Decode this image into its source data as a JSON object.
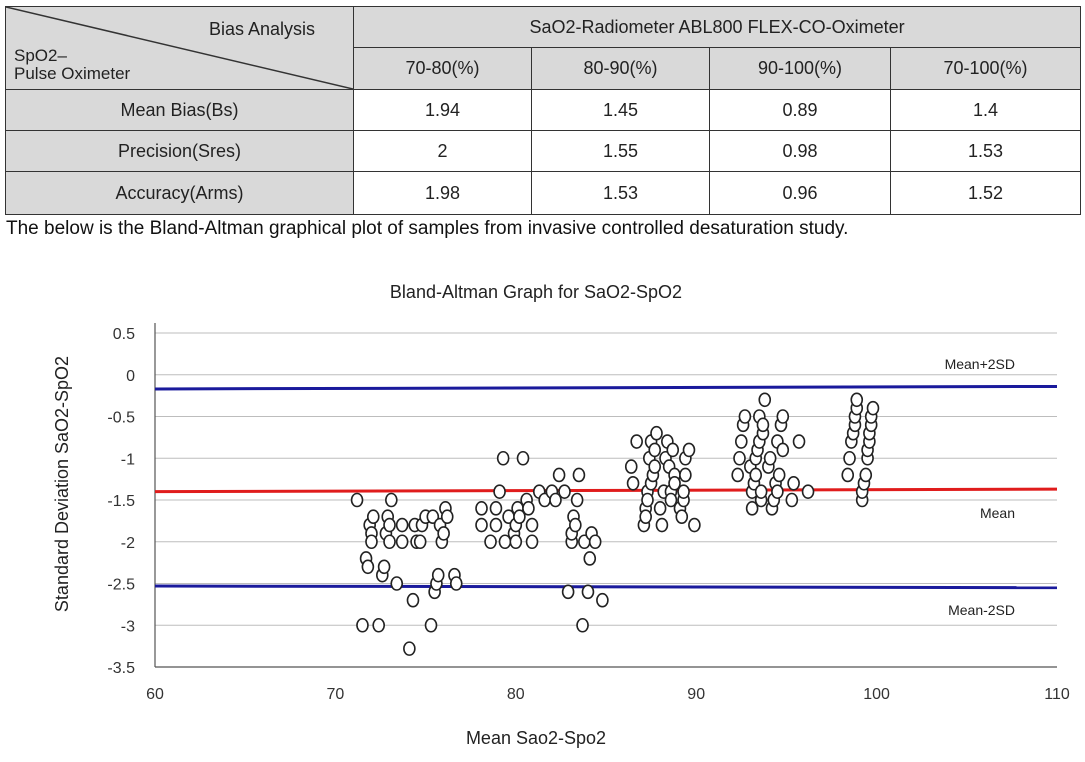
{
  "table": {
    "header_bias": "Bias Analysis",
    "header_spo2_line1": "SpO2–",
    "header_spo2_line2": "Pulse Oximeter",
    "header_device": "SaO2-Radiometer ABL800 FLEX-CO-Oximeter",
    "ranges": [
      "70-80(%)",
      "80-90(%)",
      "90-100(%)",
      "70-100(%)"
    ],
    "rows": [
      {
        "label": "Mean Bias(Bs)",
        "values": [
          "1.94",
          "1.45",
          "0.89",
          "1.4"
        ]
      },
      {
        "label": "Precision(Sres)",
        "values": [
          "2",
          "1.55",
          "0.98",
          "1.53"
        ]
      },
      {
        "label": "Accuracy(Arms)",
        "values": [
          "1.98",
          "1.53",
          "0.96",
          "1.52"
        ]
      }
    ]
  },
  "caption": "The below is the Bland-Altman graphical plot of samples from invasive controlled desaturation study.",
  "colors": {
    "upper_lower": "#1a1a9c",
    "mean": "#e01c1c",
    "grid": "#bdbdbd",
    "marker": "#222222"
  },
  "chart_data": {
    "type": "scatter",
    "title": "Bland-Altman Graph for SaO2-SpO2",
    "xlabel": "Mean Sao2-Spo2",
    "ylabel": "Standard Deviation SaO2-SpO2",
    "xlim": [
      60,
      110
    ],
    "ylim": [
      -3.5,
      0.5
    ],
    "xticks": [
      "60",
      "70",
      "80",
      "90",
      "100",
      "110"
    ],
    "yticks": [
      "0.5",
      "0",
      "-0.5",
      "-1",
      "-1.5",
      "-2",
      "-2.5",
      "-3",
      "-3.5"
    ],
    "grid": true,
    "lines": [
      {
        "name": "Mean+2SD",
        "y": [
          -0.17,
          -0.14
        ]
      },
      {
        "name": "Mean",
        "y": [
          -1.4,
          -1.37
        ]
      },
      {
        "name": "Mean-2SD",
        "y": [
          -2.53,
          -2.55
        ]
      }
    ],
    "line_labels": [
      "Mean+2SD",
      "Mean",
      "Mean-2SD"
    ],
    "points": [
      [
        71.2,
        -1.5
      ],
      [
        71.5,
        -3.0
      ],
      [
        71.7,
        -2.2
      ],
      [
        71.8,
        -2.3
      ],
      [
        71.9,
        -1.8
      ],
      [
        72.0,
        -1.9
      ],
      [
        72.0,
        -2.0
      ],
      [
        72.1,
        -1.7
      ],
      [
        72.4,
        -3.0
      ],
      [
        72.6,
        -2.4
      ],
      [
        72.7,
        -2.3
      ],
      [
        72.8,
        -1.9
      ],
      [
        72.9,
        -1.7
      ],
      [
        73.0,
        -2.0
      ],
      [
        73.0,
        -1.8
      ],
      [
        73.1,
        -1.5
      ],
      [
        73.4,
        -2.5
      ],
      [
        73.7,
        -1.8
      ],
      [
        73.7,
        -2.0
      ],
      [
        74.1,
        -3.28
      ],
      [
        74.3,
        -2.7
      ],
      [
        74.4,
        -1.8
      ],
      [
        74.5,
        -2.0
      ],
      [
        74.7,
        -2.0
      ],
      [
        74.8,
        -1.8
      ],
      [
        75.0,
        -1.7
      ],
      [
        75.3,
        -3.0
      ],
      [
        75.4,
        -1.7
      ],
      [
        75.5,
        -2.6
      ],
      [
        75.6,
        -2.5
      ],
      [
        75.7,
        -2.4
      ],
      [
        75.8,
        -1.8
      ],
      [
        75.9,
        -2.0
      ],
      [
        76.0,
        -1.9
      ],
      [
        76.1,
        -1.6
      ],
      [
        76.2,
        -1.7
      ],
      [
        76.6,
        -2.4
      ],
      [
        76.7,
        -2.5
      ],
      [
        78.1,
        -1.6
      ],
      [
        78.1,
        -1.8
      ],
      [
        78.6,
        -2.0
      ],
      [
        78.9,
        -1.6
      ],
      [
        78.9,
        -1.8
      ],
      [
        79.1,
        -1.4
      ],
      [
        79.3,
        -1.0
      ],
      [
        79.4,
        -2.0
      ],
      [
        79.6,
        -1.7
      ],
      [
        79.9,
        -1.9
      ],
      [
        80.0,
        -2.0
      ],
      [
        80.0,
        -1.8
      ],
      [
        80.1,
        -1.6
      ],
      [
        80.2,
        -1.7
      ],
      [
        80.4,
        -1.0
      ],
      [
        80.6,
        -1.5
      ],
      [
        80.7,
        -1.6
      ],
      [
        80.9,
        -1.8
      ],
      [
        80.9,
        -2.0
      ],
      [
        81.3,
        -1.4
      ],
      [
        81.6,
        -1.5
      ],
      [
        82.0,
        -1.4
      ],
      [
        82.2,
        -1.5
      ],
      [
        82.4,
        -1.2
      ],
      [
        82.7,
        -1.4
      ],
      [
        82.9,
        -2.6
      ],
      [
        83.1,
        -2.0
      ],
      [
        83.1,
        -1.9
      ],
      [
        83.2,
        -1.7
      ],
      [
        83.3,
        -1.8
      ],
      [
        83.4,
        -1.5
      ],
      [
        83.5,
        -1.2
      ],
      [
        83.7,
        -3.0
      ],
      [
        83.8,
        -2.0
      ],
      [
        84.0,
        -2.6
      ],
      [
        84.1,
        -2.2
      ],
      [
        84.2,
        -1.9
      ],
      [
        84.4,
        -2.0
      ],
      [
        84.8,
        -2.7
      ],
      [
        86.4,
        -1.1
      ],
      [
        86.5,
        -1.3
      ],
      [
        86.7,
        -0.8
      ],
      [
        87.1,
        -1.8
      ],
      [
        87.2,
        -1.6
      ],
      [
        87.2,
        -1.7
      ],
      [
        87.3,
        -1.4
      ],
      [
        87.3,
        -1.5
      ],
      [
        87.4,
        -1.0
      ],
      [
        87.5,
        -1.3
      ],
      [
        87.5,
        -0.8
      ],
      [
        87.6,
        -1.2
      ],
      [
        87.7,
        -1.1
      ],
      [
        87.7,
        -0.9
      ],
      [
        87.8,
        -0.7
      ],
      [
        88.0,
        -1.6
      ],
      [
        88.1,
        -1.8
      ],
      [
        88.2,
        -1.4
      ],
      [
        88.3,
        -1.0
      ],
      [
        88.4,
        -0.8
      ],
      [
        88.5,
        -1.1
      ],
      [
        88.6,
        -1.4
      ],
      [
        88.6,
        -1.5
      ],
      [
        88.7,
        -0.9
      ],
      [
        88.8,
        -1.2
      ],
      [
        88.8,
        -1.3
      ],
      [
        89.1,
        -1.6
      ],
      [
        89.2,
        -1.7
      ],
      [
        89.3,
        -1.5
      ],
      [
        89.3,
        -1.4
      ],
      [
        89.4,
        -1.2
      ],
      [
        89.4,
        -1.0
      ],
      [
        89.6,
        -0.9
      ],
      [
        89.9,
        -1.8
      ],
      [
        92.3,
        -1.2
      ],
      [
        92.4,
        -1.0
      ],
      [
        92.5,
        -0.8
      ],
      [
        92.6,
        -0.6
      ],
      [
        92.7,
        -0.5
      ],
      [
        93.0,
        -1.1
      ],
      [
        93.1,
        -1.6
      ],
      [
        93.1,
        -1.4
      ],
      [
        93.2,
        -1.3
      ],
      [
        93.3,
        -1.2
      ],
      [
        93.3,
        -1.0
      ],
      [
        93.4,
        -0.9
      ],
      [
        93.5,
        -0.8
      ],
      [
        93.5,
        -0.5
      ],
      [
        93.6,
        -1.5
      ],
      [
        93.6,
        -1.4
      ],
      [
        93.7,
        -0.7
      ],
      [
        93.7,
        -0.6
      ],
      [
        93.8,
        -0.3
      ],
      [
        94.0,
        -1.1
      ],
      [
        94.1,
        -1.0
      ],
      [
        94.2,
        -1.6
      ],
      [
        94.3,
        -1.5
      ],
      [
        94.4,
        -1.3
      ],
      [
        94.5,
        -1.4
      ],
      [
        94.5,
        -0.8
      ],
      [
        94.6,
        -1.2
      ],
      [
        94.7,
        -0.6
      ],
      [
        94.8,
        -0.9
      ],
      [
        94.8,
        -0.5
      ],
      [
        95.3,
        -1.5
      ],
      [
        95.4,
        -1.3
      ],
      [
        95.7,
        -0.8
      ],
      [
        96.2,
        -1.4
      ],
      [
        98.4,
        -1.2
      ],
      [
        98.5,
        -1.0
      ],
      [
        98.6,
        -0.8
      ],
      [
        98.7,
        -0.7
      ],
      [
        98.8,
        -0.6
      ],
      [
        98.8,
        -0.5
      ],
      [
        98.9,
        -0.4
      ],
      [
        98.9,
        -0.3
      ],
      [
        99.2,
        -1.5
      ],
      [
        99.2,
        -1.4
      ],
      [
        99.3,
        -1.3
      ],
      [
        99.4,
        -1.2
      ],
      [
        99.5,
        -1.0
      ],
      [
        99.5,
        -0.9
      ],
      [
        99.6,
        -0.8
      ],
      [
        99.6,
        -0.7
      ],
      [
        99.7,
        -0.6
      ],
      [
        99.7,
        -0.5
      ],
      [
        99.8,
        -0.4
      ]
    ]
  }
}
